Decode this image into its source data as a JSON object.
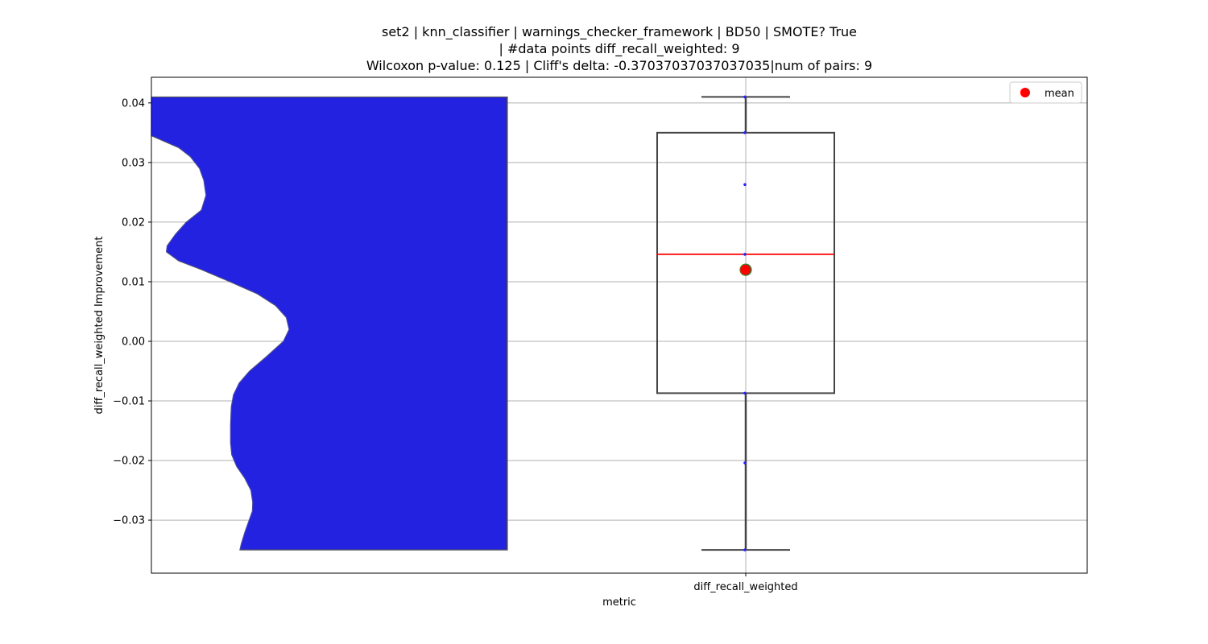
{
  "title_lines": [
    "set2 | knn_classifier | warnings_checker_framework | BD50 | SMOTE? True",
    "| #data points diff_recall_weighted: 9",
    "Wilcoxon p-value: 0.125 | Cliff's delta: -0.37037037037037035|num of pairs: 9"
  ],
  "chart_data": {
    "type": "box",
    "title": "set2 | knn_classifier | warnings_checker_framework | BD50 | SMOTE? True | #data points diff_recall_weighted: 9 Wilcoxon p-value: 0.125 | Cliff's delta: -0.37037037037037035|num of pairs: 9",
    "xlabel": "metric",
    "ylabel": "diff_recall_weighted Improvement",
    "categories": [
      "diff_recall_weighted"
    ],
    "ylim": [
      -0.0389,
      0.0443
    ],
    "yticks": [
      -0.03,
      -0.02,
      -0.01,
      0.0,
      0.01,
      0.02,
      0.03,
      0.04
    ],
    "ytick_labels": [
      "−0.03",
      "−0.02",
      "−0.01",
      "0.00",
      "0.01",
      "0.02",
      "0.03",
      "0.04"
    ],
    "grid": true,
    "legend": {
      "placement": "top-right",
      "entries": [
        {
          "label": "mean",
          "color": "#ff0000",
          "marker": "circle"
        }
      ]
    },
    "box": {
      "whisker_low": -0.035,
      "q1": -0.0087,
      "median": 0.0146,
      "q3": 0.035,
      "whisker_high": 0.041,
      "mean": 0.012,
      "box_color": "#444444",
      "median_color": "#ff0000",
      "mean_color": "#ff0000"
    },
    "points": [
      -0.035,
      -0.0204,
      -0.0087,
      0.0146,
      0.0263,
      0.035,
      0.041
    ],
    "point_color": "#2222ff",
    "violin": {
      "fill_color": "#2222e0",
      "edge_color": "#555555",
      "y_min": -0.035,
      "y_max": 0.041,
      "profile": [
        [
          0.041,
          0.0
        ],
        [
          0.0345,
          0.0
        ],
        [
          0.0325,
          0.0765
        ],
        [
          0.031,
          0.109
        ],
        [
          0.029,
          0.135
        ],
        [
          0.027,
          0.147
        ],
        [
          0.0245,
          0.153
        ],
        [
          0.022,
          0.14
        ],
        [
          0.02,
          0.098
        ],
        [
          0.018,
          0.068
        ],
        [
          0.016,
          0.044
        ],
        [
          0.015,
          0.042
        ],
        [
          0.0135,
          0.076
        ],
        [
          0.012,
          0.141
        ],
        [
          0.01,
          0.22
        ],
        [
          0.008,
          0.296
        ],
        [
          0.006,
          0.348
        ],
        [
          0.004,
          0.378
        ],
        [
          0.002,
          0.386
        ],
        [
          0.0,
          0.37
        ],
        [
          -0.0025,
          0.324
        ],
        [
          -0.005,
          0.275
        ],
        [
          -0.007,
          0.246
        ],
        [
          -0.009,
          0.23
        ],
        [
          -0.011,
          0.224
        ],
        [
          -0.014,
          0.222
        ],
        [
          -0.017,
          0.222
        ],
        [
          -0.019,
          0.225
        ],
        [
          -0.021,
          0.239
        ],
        [
          -0.023,
          0.262
        ],
        [
          -0.025,
          0.279
        ],
        [
          -0.027,
          0.284
        ],
        [
          -0.0285,
          0.283
        ],
        [
          -0.03,
          0.274
        ],
        [
          -0.032,
          0.262
        ],
        [
          -0.034,
          0.252
        ],
        [
          -0.035,
          0.248
        ]
      ]
    }
  }
}
